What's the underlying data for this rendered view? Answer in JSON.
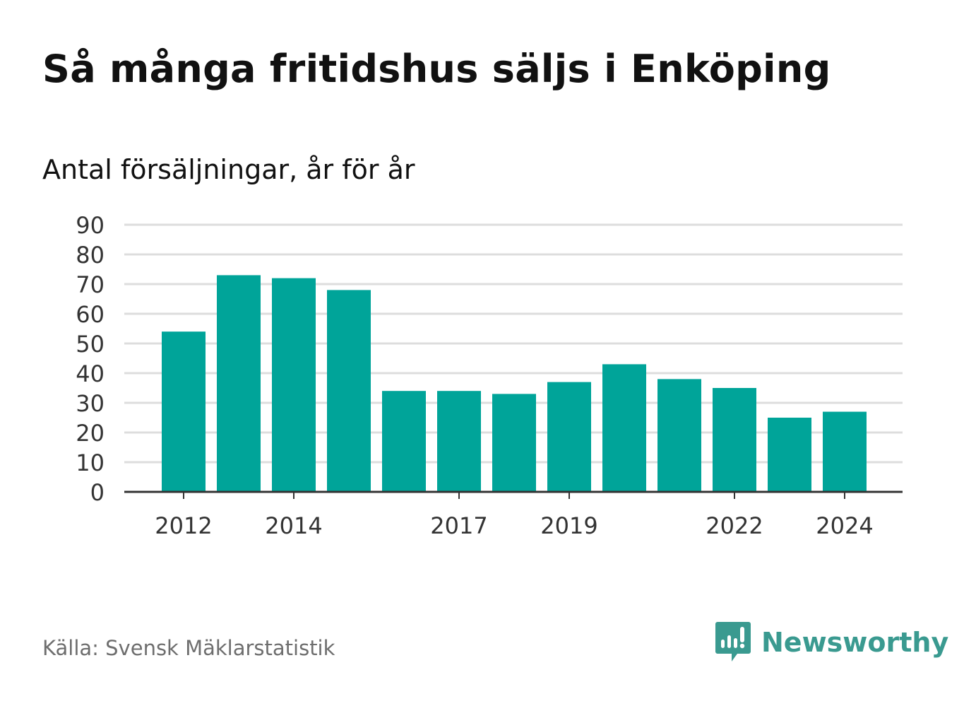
{
  "title": "Så många fritidshus säljs i Enköping",
  "subtitle": "Antal försäljningar, år för år",
  "source": "Källa: Svensk Mäklarstatistik",
  "brand": {
    "name": "Newsworthy",
    "icon": "newsworthy-logo-icon",
    "color": "#3a9a90"
  },
  "colors": {
    "bar": "#00a499",
    "grid": "#dddddd",
    "axis": "#333333",
    "text": "#111111",
    "tick_text": "#333333"
  },
  "chart_data": {
    "type": "bar",
    "categories": [
      "2012",
      "2013",
      "2014",
      "2015",
      "2016",
      "2017",
      "2018",
      "2019",
      "2020",
      "2021",
      "2022",
      "2023",
      "2024"
    ],
    "values": [
      54,
      73,
      72,
      68,
      34,
      34,
      33,
      37,
      43,
      38,
      35,
      25,
      27
    ],
    "x_tick_labels": [
      "2012",
      "2014",
      "2017",
      "2019",
      "2022",
      "2024"
    ],
    "y_ticks": [
      0,
      10,
      20,
      30,
      40,
      50,
      60,
      70,
      80,
      90
    ],
    "ylim": [
      0,
      90
    ],
    "xlabel": "",
    "ylabel": "",
    "grid": true,
    "legend": "none"
  }
}
